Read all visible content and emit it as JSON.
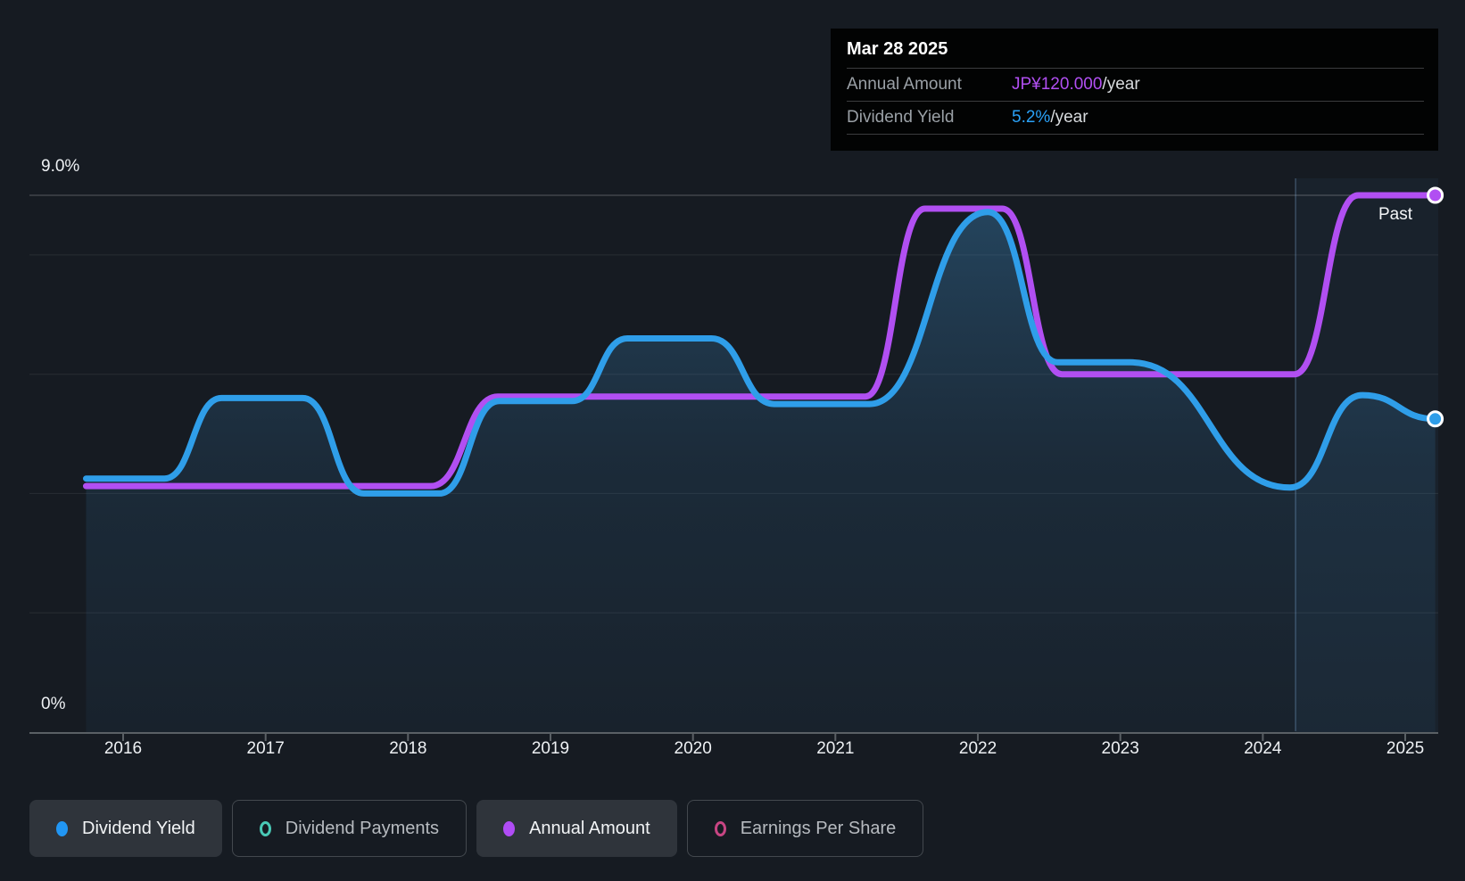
{
  "page": {
    "background": "#161b22"
  },
  "tooltip": {
    "date": "Mar 28 2025",
    "rows": [
      {
        "label": "Annual Amount",
        "value": "JP¥120.000",
        "suffix": "/year",
        "value_color": "#b14ff2"
      },
      {
        "label": "Dividend Yield",
        "value": "5.2%",
        "suffix": "/year",
        "value_color": "#2aa1f7"
      }
    ]
  },
  "axes": {
    "y_top_label": "9.0%",
    "y_bottom_label": "0%",
    "x_labels": [
      "2016",
      "2017",
      "2018",
      "2019",
      "2020",
      "2021",
      "2022",
      "2023",
      "2024",
      "2025"
    ]
  },
  "past_label": "Past",
  "legend": [
    {
      "label": "Dividend Yield",
      "color": "#2196f3",
      "style": "filled",
      "active": true
    },
    {
      "label": "Dividend Payments",
      "color": "#49c9b6",
      "style": "ring",
      "active": false
    },
    {
      "label": "Annual Amount",
      "color": "#b04cf5",
      "style": "filled",
      "active": true
    },
    {
      "label": "Earnings Per Share",
      "color": "#c74583",
      "style": "ring",
      "active": false
    }
  ],
  "chart_data": {
    "type": "line",
    "x_axis": {
      "tick_years": [
        2016,
        2017,
        2018,
        2019,
        2020,
        2021,
        2022,
        2023,
        2024,
        2025
      ],
      "start": 2015.74,
      "end": 2025.21
    },
    "y_axis": {
      "unit": "%",
      "min": 0,
      "max": 9.0,
      "top_gridline_pct": 9.0,
      "gridlines_pct": [
        8,
        6,
        4,
        2
      ],
      "grid": true
    },
    "divider_x": 2024.23,
    "legend_position": "bottom",
    "series": [
      {
        "name": "Dividend Yield",
        "unit": "%",
        "color": "#2f9ee9",
        "area_fill": true,
        "points": [
          [
            2015.74,
            4.25
          ],
          [
            2016.29,
            4.25
          ],
          [
            2016.69,
            5.6
          ],
          [
            2017.26,
            5.6
          ],
          [
            2017.69,
            4.0
          ],
          [
            2018.22,
            4.0
          ],
          [
            2018.64,
            5.55
          ],
          [
            2019.15,
            5.55
          ],
          [
            2019.54,
            6.6
          ],
          [
            2020.13,
            6.6
          ],
          [
            2020.57,
            5.5
          ],
          [
            2021.24,
            5.5
          ],
          [
            2022.07,
            8.72
          ],
          [
            2022.56,
            6.2
          ],
          [
            2023.07,
            6.2
          ],
          [
            2024.19,
            4.1
          ],
          [
            2024.7,
            5.65
          ],
          [
            2025.21,
            5.25
          ]
        ]
      },
      {
        "name": "Annual Amount",
        "unit": "JP¥ per year",
        "color": "#b14ff2",
        "area_fill": false,
        "axis_anchor": {
          "value": 120,
          "pct_equivalent": 9.0
        },
        "points": [
          [
            2015.74,
            55
          ],
          [
            2018.16,
            55
          ],
          [
            2018.63,
            75
          ],
          [
            2021.21,
            75
          ],
          [
            2021.63,
            117
          ],
          [
            2022.17,
            117
          ],
          [
            2022.59,
            80
          ],
          [
            2024.22,
            80
          ],
          [
            2024.67,
            120
          ],
          [
            2025.21,
            120
          ]
        ]
      }
    ],
    "end_markers": {
      "ring_color": "#ffffff"
    }
  }
}
